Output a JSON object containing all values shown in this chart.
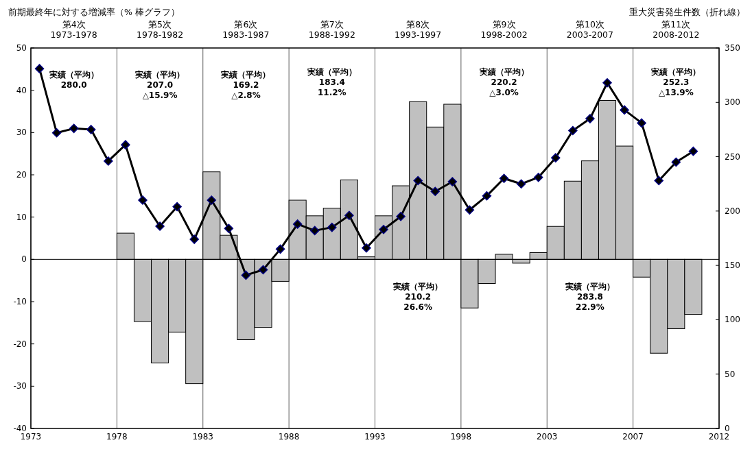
{
  "chart_data": {
    "type": "bar",
    "ylabel": "前期最終年に対する増減率（% 棒グラフ）",
    "y2label": "重大災害発生件数（折れ線）",
    "x": [
      1973,
      1974,
      1975,
      1976,
      1977,
      1978,
      1979,
      1980,
      1981,
      1982,
      1983,
      1984,
      1985,
      1986,
      1987,
      1988,
      1989,
      1990,
      1991,
      1992,
      1993,
      1994,
      1995,
      1996,
      1997,
      1998,
      1999,
      2000,
      2001,
      2002,
      2003,
      2004,
      2005,
      2006,
      2007,
      2008,
      2009,
      2010,
      2011
    ],
    "xlim": [
      1972.5,
      2012.5
    ],
    "xticks": [
      {
        "value": 1972.5,
        "label": "1973"
      },
      {
        "value": 1977.5,
        "label": "1978"
      },
      {
        "value": 1982.5,
        "label": "1983"
      },
      {
        "value": 1987.5,
        "label": "1988"
      },
      {
        "value": 1992.5,
        "label": "1993"
      },
      {
        "value": 1997.5,
        "label": "1998"
      },
      {
        "value": 2002.5,
        "label": "2003"
      },
      {
        "value": 2007.5,
        "label": "2007"
      },
      {
        "value": 2012.5,
        "label": "2012"
      }
    ],
    "ylim": [
      -40,
      50
    ],
    "yticks": [
      -40,
      -30,
      -20,
      -10,
      0,
      10,
      20,
      30,
      40,
      50
    ],
    "y2lim": [
      0,
      350
    ],
    "y2ticks": [
      0,
      50,
      100,
      150,
      200,
      250,
      300,
      350
    ],
    "series": [
      {
        "color": "#c0c0c0",
        "values": [
          null,
          null,
          null,
          null,
          null,
          6.2,
          -14.7,
          -24.5,
          -17.2,
          -29.4,
          20.7,
          5.7,
          -19.0,
          -16.1,
          -5.2,
          14.0,
          10.3,
          12.1,
          18.8,
          0.6,
          10.3,
          17.4,
          37.3,
          31.3,
          36.7,
          -11.5,
          -5.7,
          1.2,
          -0.9,
          1.6,
          7.8,
          18.5,
          23.3,
          37.6,
          26.8,
          -4.2,
          -22.2,
          -16.4,
          -13.0
        ]
      },
      {
        "type": "line",
        "axis": "y2",
        "color": "#000000",
        "marker": "diamond",
        "values": [
          331,
          272,
          276,
          275,
          246,
          261,
          210,
          186,
          204,
          174,
          210,
          184,
          141,
          146,
          165,
          188,
          182,
          185,
          196,
          166,
          183,
          195,
          228,
          218,
          227,
          201,
          214,
          230,
          225,
          231,
          249,
          274,
          285,
          318,
          293,
          281,
          228,
          245,
          255
        ]
      }
    ],
    "annotations": [
      "第4次\n1973-1978",
      "第5次\n1978-1982",
      "第6次\n1983-1987",
      "第7次\n1988-1992",
      "第8次\n1993-1997",
      "第9次\n1998-2002",
      "第10次\n2003-2007",
      "第11次\n2008-2012",
      "実績（平均）\n280.0",
      "実績（平均）\n207.0\n△15.9%",
      "実績（平均）\n169.2\n△2.8%",
      "実績（平均）\n183.4\n11.2%",
      "実績（平均）\n210.2\n26.6%",
      "実績（平均）\n220.2\n△3.0%",
      "実績（平均）\n283.8\n22.9%",
      "実績（平均）\n252.3\n△13.9%"
    ],
    "grid": "x"
  }
}
